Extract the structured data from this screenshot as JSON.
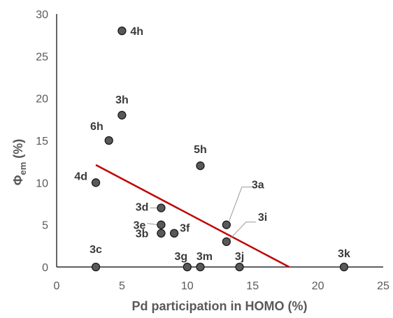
{
  "chart_data": {
    "type": "scatter",
    "xlabel": "Pd participation in HOMO (%)",
    "ylabel_main": "Φ",
    "ylabel_sub": "em",
    "ylabel_unit": " (%)",
    "xlim": [
      0,
      25
    ],
    "ylim": [
      0,
      30
    ],
    "xticks": [
      0,
      5,
      10,
      15,
      20,
      25
    ],
    "yticks": [
      0,
      5,
      10,
      15,
      20,
      25,
      30
    ],
    "grid": false,
    "legend": "none",
    "colors": {
      "point_fill": "#595959",
      "point_stroke": "#1a1a1a",
      "trendline": "#c00000",
      "axis": "#000000"
    },
    "points": [
      {
        "label": "4h",
        "x": 5,
        "y": 28
      },
      {
        "label": "3h",
        "x": 5,
        "y": 18
      },
      {
        "label": "6h",
        "x": 4,
        "y": 15
      },
      {
        "label": "5h",
        "x": 11,
        "y": 12
      },
      {
        "label": "4d",
        "x": 3,
        "y": 10
      },
      {
        "label": "3d",
        "x": 8,
        "y": 7
      },
      {
        "label": "3e",
        "x": 8,
        "y": 5
      },
      {
        "label": "3b",
        "x": 8,
        "y": 4
      },
      {
        "label": "3f",
        "x": 9,
        "y": 4
      },
      {
        "label": "3a",
        "x": 13,
        "y": 5
      },
      {
        "label": "3i",
        "x": 13,
        "y": 3
      },
      {
        "label": "3c",
        "x": 3,
        "y": 0
      },
      {
        "label": "3g",
        "x": 10,
        "y": 0
      },
      {
        "label": "3m",
        "x": 11,
        "y": 0
      },
      {
        "label": "3j",
        "x": 14,
        "y": 0
      },
      {
        "label": "3k",
        "x": 22,
        "y": 0
      }
    ],
    "trendline": {
      "x": [
        3,
        17.8
      ],
      "y": [
        12.1,
        0
      ]
    }
  }
}
